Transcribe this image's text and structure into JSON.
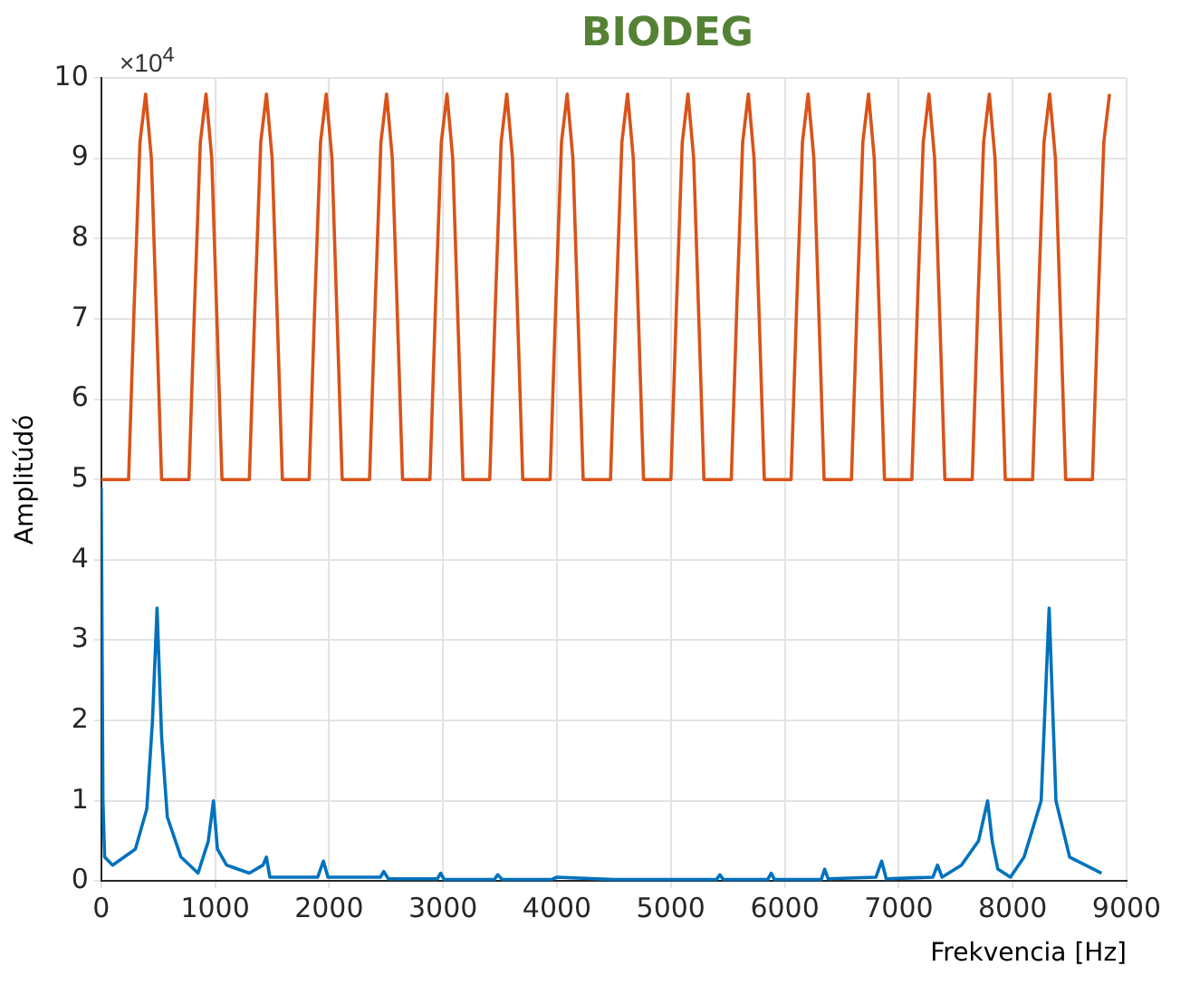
{
  "chart_data": {
    "type": "line",
    "title": "BIODEG",
    "xlabel": "Frekvencia [Hz]",
    "ylabel": "Amplitúdó",
    "annotations": [
      "×10$^{4}$"
    ],
    "xlim": [
      0,
      9000
    ],
    "xticks": [
      0,
      1000,
      2000,
      3000,
      4000,
      5000,
      6000,
      7000,
      8000,
      9000
    ],
    "ylim": [
      0,
      10
    ],
    "yticks": [
      0,
      1,
      2,
      3,
      4,
      5,
      6,
      7,
      8,
      9,
      10
    ],
    "grid": true,
    "legend": false,
    "marker": "none",
    "line_style": "solid",
    "series": [
      {
        "color": "#d95319",
        "x": [
          0,
          240,
          290,
          340,
          390,
          440,
          490,
          530,
          770,
          820,
          870,
          920,
          970,
          1020,
          1060,
          1300,
          1350,
          1400,
          1450,
          1500,
          1550,
          1590,
          1825,
          1875,
          1925,
          1975,
          2025,
          2075,
          2115,
          2355,
          2405,
          2455,
          2505,
          2555,
          2605,
          2645,
          2885,
          2935,
          2985,
          3035,
          3085,
          3135,
          3175,
          3410,
          3460,
          3510,
          3560,
          3610,
          3660,
          3700,
          3940,
          3990,
          4040,
          4090,
          4140,
          4190,
          4230,
          4470,
          4520,
          4570,
          4620,
          4670,
          4720,
          4760,
          5000,
          5050,
          5100,
          5150,
          5200,
          5250,
          5290,
          5530,
          5580,
          5630,
          5680,
          5730,
          5780,
          5820,
          6055,
          6105,
          6155,
          6205,
          6255,
          6305,
          6345,
          6585,
          6635,
          6685,
          6735,
          6785,
          6835,
          6875,
          7115,
          7165,
          7215,
          7265,
          7315,
          7365,
          7405,
          7645,
          7695,
          7745,
          7795,
          7845,
          7895,
          7935,
          8175,
          8225,
          8275,
          8325,
          8375,
          8425,
          8465,
          8700,
          8750,
          8800,
          8850
        ],
        "values": [
          5,
          5,
          7.2,
          9.2,
          9.8,
          9,
          6.8,
          5,
          5,
          7.2,
          9.2,
          9.8,
          9,
          6.8,
          5,
          5,
          7.2,
          9.2,
          9.8,
          9,
          6.8,
          5,
          5,
          7.2,
          9.2,
          9.8,
          9,
          6.8,
          5,
          5,
          7.2,
          9.2,
          9.8,
          9,
          6.8,
          5,
          5,
          7.2,
          9.2,
          9.8,
          9,
          6.8,
          5,
          5,
          7.2,
          9.2,
          9.8,
          9,
          6.8,
          5,
          5,
          7.2,
          9.2,
          9.8,
          9,
          6.8,
          5,
          5,
          7.2,
          9.2,
          9.8,
          9,
          6.8,
          5,
          5,
          7.2,
          9.2,
          9.8,
          9,
          6.8,
          5,
          5,
          7.2,
          9.2,
          9.8,
          9,
          6.8,
          5,
          5,
          7.2,
          9.2,
          9.8,
          9,
          6.8,
          5,
          5,
          7.2,
          9.2,
          9.8,
          9,
          6.8,
          5,
          5,
          7.2,
          9.2,
          9.8,
          9,
          6.8,
          5,
          5,
          7.2,
          9.2,
          9.8,
          9,
          6.8,
          5,
          5,
          7.2,
          9.2,
          9.8,
          9,
          6.8,
          5,
          5,
          7.2,
          9.2,
          9.8
        ]
      },
      {
        "color": "#0072bd",
        "x": [
          0,
          15,
          30,
          100,
          300,
          400,
          450,
          490,
          530,
          580,
          700,
          850,
          940,
          985,
          1020,
          1100,
          1300,
          1420,
          1450,
          1480,
          1900,
          1950,
          1990,
          2450,
          2480,
          2520,
          2950,
          2980,
          3010,
          3450,
          3480,
          3520,
          3950,
          4000,
          4500,
          5400,
          5430,
          5460,
          5850,
          5880,
          5910,
          6320,
          6350,
          6380,
          6800,
          6850,
          6890,
          7300,
          7340,
          7380,
          7550,
          7700,
          7780,
          7820,
          7870,
          7980,
          8100,
          8250,
          8320,
          8380,
          8500,
          8780
        ],
        "values": [
          4.9,
          1,
          0.3,
          0.2,
          0.4,
          0.9,
          2,
          3.4,
          1.8,
          0.8,
          0.3,
          0.1,
          0.5,
          1,
          0.4,
          0.2,
          0.1,
          0.2,
          0.3,
          0.05,
          0.05,
          0.25,
          0.05,
          0.05,
          0.12,
          0.03,
          0.03,
          0.1,
          0.02,
          0.02,
          0.08,
          0.02,
          0.02,
          0.05,
          0.02,
          0.02,
          0.08,
          0.02,
          0.02,
          0.1,
          0.02,
          0.02,
          0.15,
          0.03,
          0.05,
          0.25,
          0.03,
          0.05,
          0.2,
          0.05,
          0.2,
          0.5,
          1,
          0.5,
          0.15,
          0.05,
          0.3,
          1,
          3.4,
          1,
          0.3,
          0.1
        ]
      }
    ]
  }
}
